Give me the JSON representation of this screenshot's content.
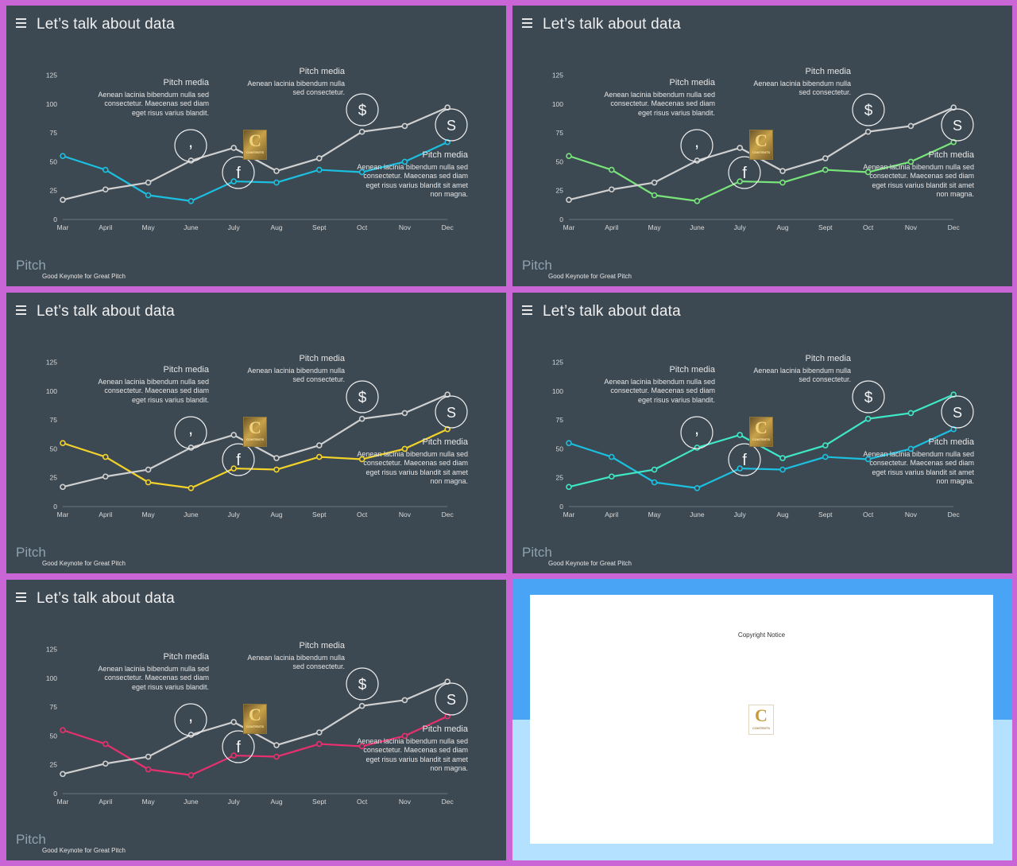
{
  "slide_title": "Let’s talk about data",
  "brand_text": "Pitch",
  "tagline": "Good Keynote for Great Pitch",
  "notes": {
    "left": {
      "heading": "Pitch media",
      "body": "Aenean lacinia bibendum nulla sed consectetur. Maecenas sed diam eget risus varius blandit."
    },
    "top_right": {
      "heading": "Pitch media",
      "body": "Aenean lacinia bibendum nulla sed consectetur."
    },
    "bottom_right": {
      "heading": "Pitch media",
      "body": "Aenean lacinia bibendum nulla sed consectetur. Maecenas sed diam eget risus varius blandit sit amet non magna."
    }
  },
  "badges": [
    ",",
    "f",
    "$",
    "S"
  ],
  "logo": {
    "letter": "C",
    "text": "CONTENTS"
  },
  "copyright_slide": {
    "title": "Copyright Notice"
  },
  "colors": {
    "slide_bg": "#3d4952",
    "frame": "#c965d4",
    "gray_series": "#d0d0d0",
    "slide1_accent": "#1bc0e0",
    "slide2_accent": "#78e57a",
    "slide3_accent": "#f3d22a",
    "slide4_accent_a": "#1bc0e0",
    "slide4_accent_b": "#3ee8c6",
    "slide5_accent": "#e8306e"
  },
  "chart_data": [
    {
      "type": "line",
      "categories": [
        "Mar",
        "April",
        "May",
        "June",
        "July",
        "Aug",
        "Sept",
        "Oct",
        "Nov",
        "Dec"
      ],
      "yticks": [
        0,
        25,
        50,
        75,
        100,
        125
      ],
      "ylim": [
        0,
        125
      ],
      "series": [
        {
          "values": [
            55,
            43,
            21,
            16,
            33,
            32,
            43,
            41,
            50,
            67
          ],
          "color": "#1bc0e0"
        },
        {
          "values": [
            17,
            26,
            32,
            51,
            62,
            42,
            53,
            76,
            81,
            97
          ],
          "color": "#d0d0d0"
        }
      ]
    },
    {
      "type": "line",
      "categories": [
        "Mar",
        "April",
        "May",
        "June",
        "July",
        "Aug",
        "Sept",
        "Oct",
        "Nov",
        "Dec"
      ],
      "yticks": [
        0,
        25,
        50,
        75,
        100,
        125
      ],
      "ylim": [
        0,
        125
      ],
      "series": [
        {
          "values": [
            55,
            43,
            21,
            16,
            33,
            32,
            43,
            41,
            50,
            67
          ],
          "color": "#78e57a"
        },
        {
          "values": [
            17,
            26,
            32,
            51,
            62,
            42,
            53,
            76,
            81,
            97
          ],
          "color": "#d0d0d0"
        }
      ]
    },
    {
      "type": "line",
      "categories": [
        "Mar",
        "April",
        "May",
        "June",
        "July",
        "Aug",
        "Sept",
        "Oct",
        "Nov",
        "Dec"
      ],
      "yticks": [
        0,
        25,
        50,
        75,
        100,
        125
      ],
      "ylim": [
        0,
        125
      ],
      "series": [
        {
          "values": [
            55,
            43,
            21,
            16,
            33,
            32,
            43,
            41,
            50,
            67
          ],
          "color": "#f3d22a"
        },
        {
          "values": [
            17,
            26,
            32,
            51,
            62,
            42,
            53,
            76,
            81,
            97
          ],
          "color": "#d0d0d0"
        }
      ]
    },
    {
      "type": "line",
      "categories": [
        "Mar",
        "April",
        "May",
        "June",
        "July",
        "Aug",
        "Sept",
        "Oct",
        "Nov",
        "Dec"
      ],
      "yticks": [
        0,
        25,
        50,
        75,
        100,
        125
      ],
      "ylim": [
        0,
        125
      ],
      "series": [
        {
          "values": [
            55,
            43,
            21,
            16,
            33,
            32,
            43,
            41,
            50,
            67
          ],
          "color": "#1bc0e0"
        },
        {
          "values": [
            17,
            26,
            32,
            51,
            62,
            42,
            53,
            76,
            81,
            97
          ],
          "color": "#3ee8c6"
        }
      ]
    },
    {
      "type": "line",
      "categories": [
        "Mar",
        "April",
        "May",
        "June",
        "July",
        "Aug",
        "Sept",
        "Oct",
        "Nov",
        "Dec"
      ],
      "yticks": [
        0,
        25,
        50,
        75,
        100,
        125
      ],
      "ylim": [
        0,
        125
      ],
      "series": [
        {
          "values": [
            55,
            43,
            21,
            16,
            33,
            32,
            43,
            41,
            50,
            67
          ],
          "color": "#e8306e"
        },
        {
          "values": [
            17,
            26,
            32,
            51,
            62,
            42,
            53,
            76,
            81,
            97
          ],
          "color": "#d0d0d0"
        }
      ]
    }
  ]
}
